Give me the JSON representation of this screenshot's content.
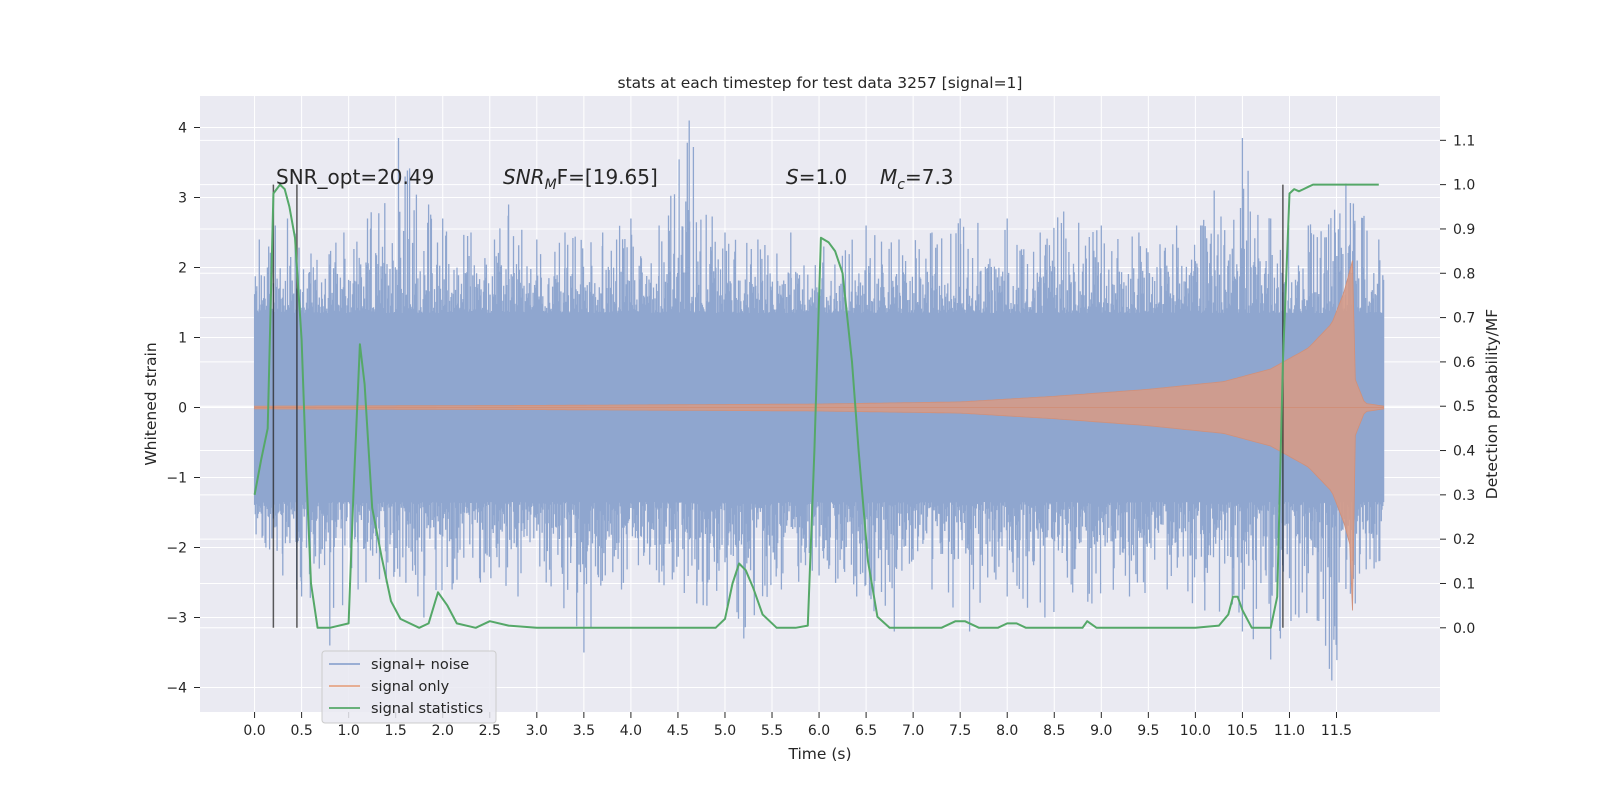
{
  "chart_data": {
    "type": "line",
    "title": "stats at each timestep for test data 3257 [signal=1]",
    "xlabel": "Time (s)",
    "ylabel": "Whitened strain",
    "y2label": "Detection probability/MF",
    "xlim": [
      -0.58,
      12.6
    ],
    "ylim": [
      -4.35,
      4.45
    ],
    "y2lim": [
      -0.19,
      1.2
    ],
    "x_ticks": [
      0.0,
      0.5,
      1.0,
      1.5,
      2.0,
      2.5,
      3.0,
      3.5,
      4.0,
      4.5,
      5.0,
      5.5,
      6.0,
      6.5,
      7.0,
      7.5,
      8.0,
      8.5,
      9.0,
      9.5,
      10.0,
      10.5,
      11.0,
      11.5
    ],
    "x_tick_labels": [
      "0.0",
      "0.5",
      "1.0",
      "1.5",
      "2.0",
      "2.5",
      "3.0",
      "3.5",
      "4.0",
      "4.5",
      "5.0",
      "5.5",
      "6.0",
      "6.5",
      "7.0",
      "7.5",
      "8.0",
      "8.5",
      "9.0",
      "9.5",
      "10.0",
      "10.5",
      "11.0",
      "11.5"
    ],
    "y_ticks": [
      4,
      3,
      2,
      1,
      0,
      -1,
      -2,
      -3,
      -4
    ],
    "y_tick_labels": [
      "4",
      "3",
      "2",
      "1",
      "0",
      "−1",
      "−2",
      "−3",
      "−4"
    ],
    "y2_ticks": [
      1.1,
      1.0,
      0.9,
      0.8,
      0.7,
      0.6,
      0.5,
      0.4,
      0.3,
      0.2,
      0.1,
      0.0
    ],
    "y2_tick_labels": [
      "1.1",
      "1.0",
      "0.9",
      "0.8",
      "0.7",
      "0.6",
      "0.5",
      "0.4",
      "0.3",
      "0.2",
      "0.1",
      "0.0"
    ],
    "grid": true,
    "legend_position": "lower-left",
    "annotations": [
      "SNR_opt=20.49",
      "SNR",
      "M",
      "F=[19.65]",
      "S",
      "=1.0",
      "M",
      "c",
      "=7.3"
    ],
    "series": [
      {
        "name": "signal+ noise",
        "color": "#8fa6cf",
        "axis": "left",
        "style": "noise",
        "x_range": [
          0.0,
          12.0
        ],
        "core_amplitude": 1.35,
        "peak_upper": [
          [
            0.05,
            2.4
          ],
          [
            0.15,
            2.3
          ],
          [
            0.22,
            2.6
          ],
          [
            0.35,
            2.7
          ],
          [
            0.6,
            2.2
          ],
          [
            0.95,
            2.5
          ],
          [
            1.2,
            2.7
          ],
          [
            1.53,
            3.85
          ],
          [
            1.85,
            2.9
          ],
          [
            2.0,
            2.7
          ],
          [
            2.3,
            2.5
          ],
          [
            2.55,
            2.4
          ],
          [
            2.7,
            2.9
          ],
          [
            3.0,
            2.4
          ],
          [
            3.3,
            2.5
          ],
          [
            3.7,
            2.5
          ],
          [
            4.0,
            2.7
          ],
          [
            4.3,
            2.6
          ],
          [
            4.62,
            4.1
          ],
          [
            5.0,
            2.5
          ],
          [
            5.35,
            2.4
          ],
          [
            5.7,
            2.5
          ],
          [
            6.05,
            2.3
          ],
          [
            6.5,
            2.6
          ],
          [
            6.85,
            2.4
          ],
          [
            7.2,
            2.5
          ],
          [
            7.5,
            2.7
          ],
          [
            8.0,
            2.7
          ],
          [
            8.35,
            2.5
          ],
          [
            8.6,
            2.8
          ],
          [
            9.0,
            2.6
          ],
          [
            9.4,
            2.5
          ],
          [
            9.8,
            2.6
          ],
          [
            10.2,
            3.1
          ],
          [
            10.5,
            3.85
          ],
          [
            10.8,
            2.7
          ],
          [
            11.2,
            2.6
          ],
          [
            11.6,
            3.2
          ],
          [
            11.95,
            2.4
          ]
        ],
        "peak_lower": [
          [
            0.12,
            -2.0
          ],
          [
            0.3,
            -2.4
          ],
          [
            0.5,
            -2.7
          ],
          [
            0.8,
            -3.4
          ],
          [
            1.1,
            -2.6
          ],
          [
            1.4,
            -2.5
          ],
          [
            1.8,
            -3.0
          ],
          [
            2.1,
            -2.6
          ],
          [
            2.4,
            -2.5
          ],
          [
            2.8,
            -2.7
          ],
          [
            3.1,
            -2.5
          ],
          [
            3.5,
            -3.5
          ],
          [
            3.9,
            -2.6
          ],
          [
            4.3,
            -2.5
          ],
          [
            4.7,
            -2.8
          ],
          [
            5.2,
            -3.3
          ],
          [
            5.6,
            -2.6
          ],
          [
            6.0,
            -2.4
          ],
          [
            6.4,
            -2.7
          ],
          [
            6.8,
            -3.2
          ],
          [
            7.2,
            -2.6
          ],
          [
            7.6,
            -3.2
          ],
          [
            8.0,
            -2.7
          ],
          [
            8.4,
            -3.0
          ],
          [
            8.9,
            -2.8
          ],
          [
            9.3,
            -2.7
          ],
          [
            9.7,
            -2.6
          ],
          [
            10.1,
            -2.9
          ],
          [
            10.5,
            -3.2
          ],
          [
            10.8,
            -3.6
          ],
          [
            11.1,
            -3.0
          ],
          [
            11.45,
            -3.9
          ],
          [
            11.7,
            -2.8
          ],
          [
            11.9,
            -2.3
          ]
        ]
      },
      {
        "name": "signal only",
        "color": "#dd8452",
        "axis": "left",
        "style": "chirp",
        "x_range": [
          0.0,
          11.67
        ],
        "envelope": [
          [
            0.0,
            0.02
          ],
          [
            3.0,
            0.03
          ],
          [
            6.0,
            0.05
          ],
          [
            7.5,
            0.08
          ],
          [
            8.5,
            0.16
          ],
          [
            9.5,
            0.26
          ],
          [
            10.3,
            0.37
          ],
          [
            10.8,
            0.55
          ],
          [
            11.2,
            0.85
          ],
          [
            11.45,
            1.2
          ],
          [
            11.58,
            1.65
          ],
          [
            11.64,
            1.95
          ],
          [
            11.67,
            2.1
          ],
          [
            11.7,
            0.4
          ],
          [
            11.8,
            0.06
          ],
          [
            12.0,
            0.02
          ]
        ],
        "lower_envelope_end": -2.9
      },
      {
        "name": "signal statistics",
        "color": "#55a868",
        "axis": "right",
        "x": [
          0.0,
          0.07,
          0.14,
          0.2,
          0.27,
          0.32,
          0.37,
          0.43,
          0.5,
          0.55,
          0.6,
          0.67,
          0.72,
          0.8,
          1.0,
          1.05,
          1.12,
          1.17,
          1.25,
          1.35,
          1.45,
          1.55,
          1.75,
          1.85,
          1.95,
          2.05,
          2.15,
          2.35,
          2.5,
          2.7,
          3.0,
          3.5,
          4.0,
          4.5,
          4.9,
          5.0,
          5.08,
          5.15,
          5.22,
          5.3,
          5.4,
          5.55,
          5.75,
          5.88,
          5.95,
          6.02,
          6.1,
          6.17,
          6.25,
          6.35,
          6.42,
          6.52,
          6.62,
          6.75,
          7.0,
          7.3,
          7.45,
          7.55,
          7.7,
          7.9,
          8.0,
          8.1,
          8.2,
          8.5,
          8.8,
          8.85,
          8.95,
          9.2,
          9.5,
          10.0,
          10.25,
          10.35,
          10.4,
          10.45,
          10.5,
          10.6,
          10.7,
          10.8,
          10.87,
          10.93,
          11.0,
          11.05,
          11.1,
          11.15,
          11.2,
          11.25,
          11.35,
          11.5,
          11.7,
          11.95
        ],
        "y": [
          0.3,
          0.38,
          0.45,
          0.98,
          1.0,
          0.99,
          0.95,
          0.88,
          0.65,
          0.35,
          0.1,
          0.0,
          0.0,
          0.0,
          0.01,
          0.3,
          0.64,
          0.55,
          0.27,
          0.16,
          0.06,
          0.02,
          0.0,
          0.01,
          0.08,
          0.05,
          0.01,
          0.0,
          0.015,
          0.005,
          0.0,
          0.0,
          0.0,
          0.0,
          0.0,
          0.02,
          0.1,
          0.145,
          0.13,
          0.09,
          0.03,
          0.0,
          0.0,
          0.005,
          0.4,
          0.88,
          0.87,
          0.85,
          0.8,
          0.6,
          0.4,
          0.15,
          0.025,
          0.0,
          0.0,
          0.0,
          0.015,
          0.015,
          0.0,
          0.0,
          0.01,
          0.01,
          0.0,
          0.0,
          0.0,
          0.015,
          0.0,
          0.0,
          0.0,
          0.0,
          0.005,
          0.03,
          0.07,
          0.07,
          0.04,
          0.0,
          0.0,
          0.0,
          0.07,
          0.6,
          0.98,
          0.99,
          0.985,
          0.99,
          0.995,
          1.0,
          1.0,
          1.0,
          1.0,
          1.0
        ]
      }
    ],
    "vertical_lines": {
      "color": "#262626",
      "axis": "right",
      "y_range": [
        0.0,
        1.0
      ],
      "x": [
        0.2,
        0.45,
        10.93
      ]
    }
  }
}
